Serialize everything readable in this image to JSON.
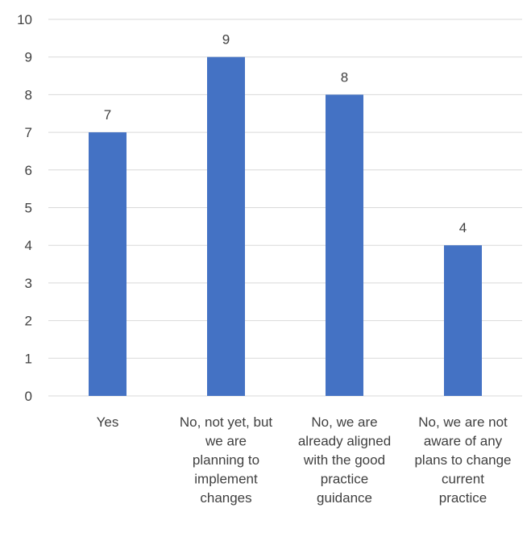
{
  "chart_data": {
    "type": "bar",
    "title": "",
    "xlabel": "",
    "ylabel": "",
    "categories": [
      "Yes",
      "No, not yet, but we are planning to implement changes",
      "No, we are already aligned with the good practice guidance",
      "No, we are not aware of any plans to change current practice"
    ],
    "category_lines": [
      [
        "Yes"
      ],
      [
        "No, not yet, but",
        "we are",
        "planning to",
        "implement",
        "changes"
      ],
      [
        "No, we are",
        "already aligned",
        "with the good",
        "practice",
        "guidance"
      ],
      [
        "No, we are not",
        "aware of any",
        "plans to change",
        "current",
        "practice"
      ]
    ],
    "values": [
      7,
      9,
      8,
      4
    ],
    "data_labels": [
      "7",
      "9",
      "8",
      "4"
    ],
    "ylim": [
      0,
      10
    ],
    "yticks": [
      "0",
      "1",
      "2",
      "3",
      "4",
      "5",
      "6",
      "7",
      "8",
      "9",
      "10"
    ],
    "grid": true,
    "legend": "none",
    "colors": {
      "bar": "#4472C4",
      "grid": "#D9D9D9",
      "text": "#404040"
    }
  }
}
